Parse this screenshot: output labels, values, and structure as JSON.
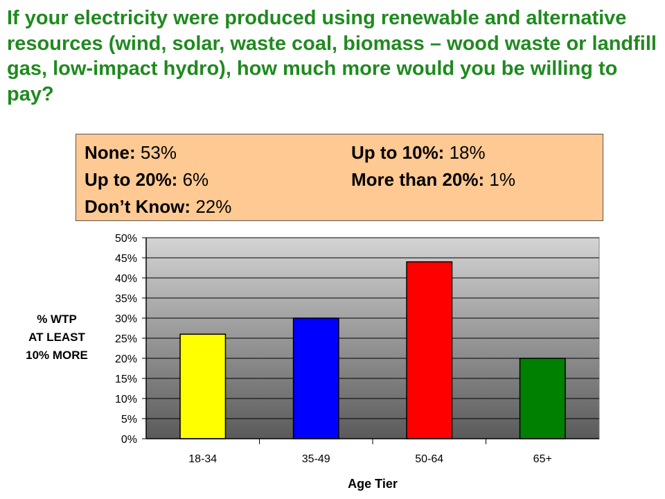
{
  "question": "If your electricity were produced using renewable and alternative resources (wind, solar, waste coal, biomass – wood waste or landfill gas, low-impact hydro), how much more would you be willing to pay?",
  "answers": [
    {
      "label": "None:",
      "value": "53%"
    },
    {
      "label": "Up to 10%:",
      "value": "18%"
    },
    {
      "label": "Up to 20%:",
      "value": "6%"
    },
    {
      "label": "More than 20%:",
      "value": "1%"
    },
    {
      "label": "Don’t Know:",
      "value": "22%"
    }
  ],
  "colors": {
    "title": "#1f8a1f",
    "answer_box": "#ffc993",
    "plot_top": "#d4d4d4",
    "plot_bottom": "#5a5a5a"
  },
  "chart_data": {
    "type": "bar",
    "categories": [
      "18-34",
      "35-49",
      "50-64",
      "65+"
    ],
    "values": [
      26,
      30,
      44,
      20
    ],
    "bar_colors": [
      "#ffff00",
      "#0000ff",
      "#ff0000",
      "#008000"
    ],
    "xlabel": "Age Tier",
    "ylabel_lines": [
      "% WTP",
      "AT LEAST",
      "10% MORE"
    ],
    "ylim": [
      0,
      50
    ],
    "yticks": [
      0,
      5,
      10,
      15,
      20,
      25,
      30,
      35,
      40,
      45,
      50
    ],
    "ytick_labels": [
      "0%",
      "5%",
      "10%",
      "15%",
      "20%",
      "25%",
      "30%",
      "35%",
      "40%",
      "45%",
      "50%"
    ],
    "grid": true,
    "legend": "none"
  }
}
